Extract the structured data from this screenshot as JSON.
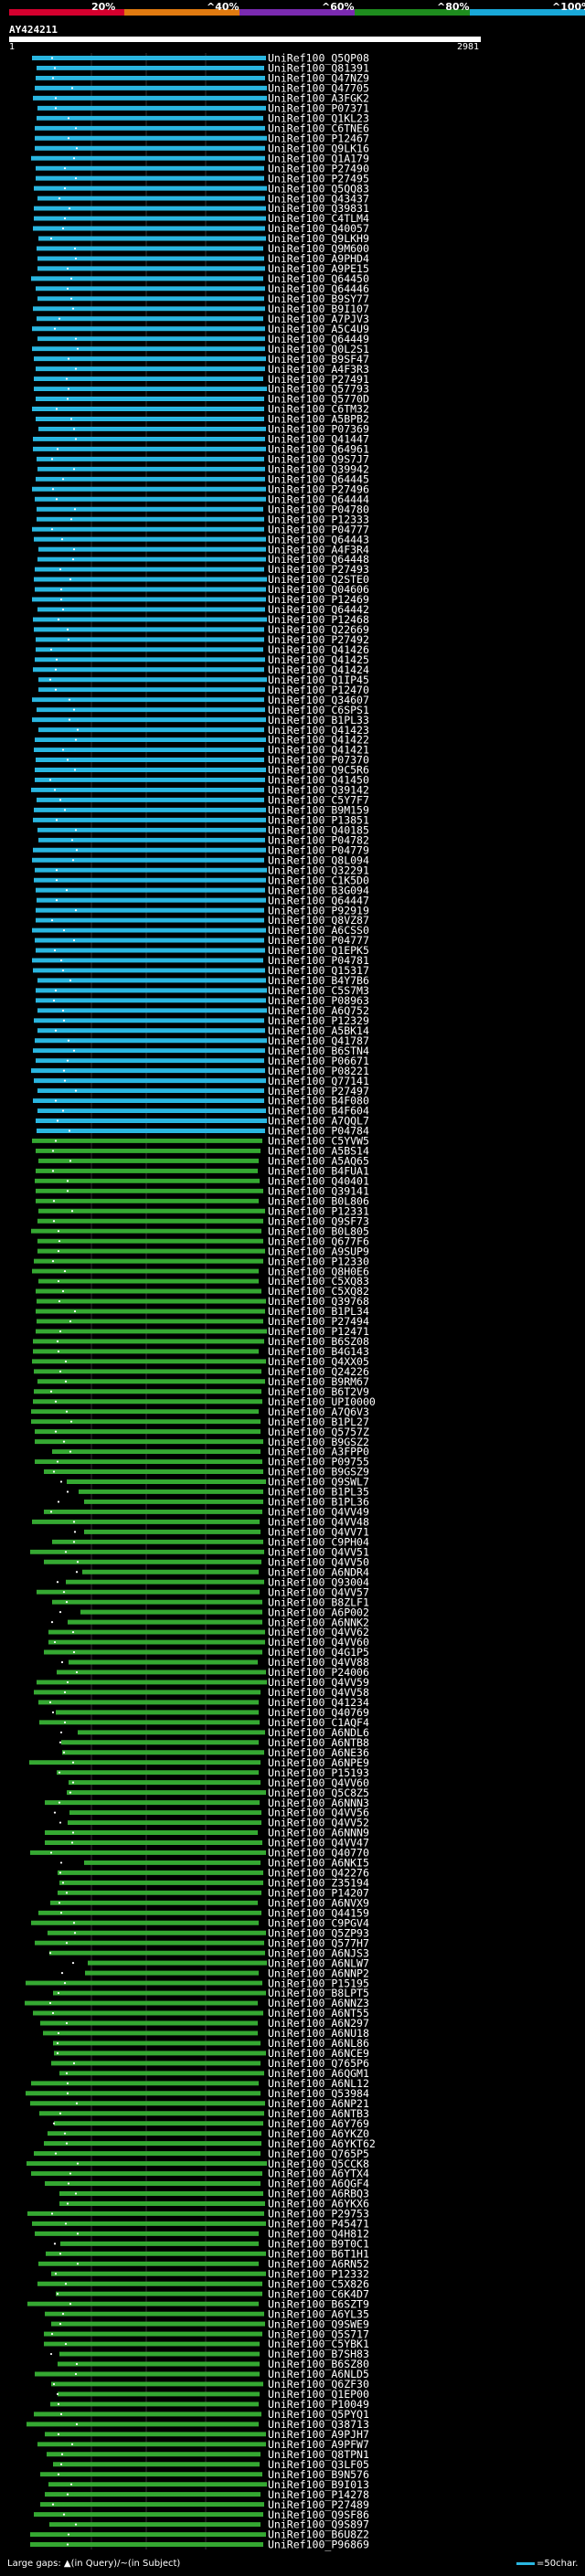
{
  "chart_data": {
    "type": "alignment_overview",
    "query": {
      "name": "AY424211",
      "start": 1,
      "end": 2981
    },
    "color_key": {
      "stops": [
        {
          "label": "20%",
          "color": "#d4002e"
        },
        {
          "label": "^40%",
          "color": "#e07a10"
        },
        {
          "label": "^60%",
          "color": "#7a2ab0"
        },
        {
          "label": "^80%",
          "color": "#1e8c1e"
        },
        {
          "label": "^100%",
          "color": "#19a8d8"
        }
      ]
    },
    "hits": [
      "UniRef100_Q5QP08",
      "UniRef100_Q81391",
      "UniRef100_Q47NZ9",
      "UniRef100_Q47705",
      "UniRef100_A3FGK2",
      "UniRef100_P07371",
      "UniRef100_Q1KL23",
      "UniRef100_C6TNE6",
      "UniRef100_P12467",
      "UniRef100_Q9LK16",
      "UniRef100_Q1A179",
      "UniRef100_P27490",
      "UniRef100_P27495",
      "UniRef100_Q5QQ83",
      "UniRef100_Q43437",
      "UniRef100_Q39831",
      "UniRef100_C4TLM4",
      "UniRef100_Q40057",
      "UniRef100_Q9LKH9",
      "UniRef100_Q9M600",
      "UniRef100_A9PHD4",
      "UniRef100_A9PE15",
      "UniRef100_Q64450",
      "UniRef100_Q64446",
      "UniRef100_B9SY77",
      "UniRef100_B9I107",
      "UniRef100_A7PJV3",
      "UniRef100_A5C4U9",
      "UniRef100_Q64449",
      "UniRef100_Q0L2S1",
      "UniRef100_B9SF47",
      "UniRef100_A4F3R3",
      "UniRef100_P27491",
      "UniRef100_Q57793",
      "UniRef100_Q5770D",
      "UniRef100_C6TM32",
      "UniRef100_A5BPB2",
      "UniRef100_P07369",
      "UniRef100_Q41447",
      "UniRef100_Q64961",
      "UniRef100_Q9S7J7",
      "UniRef100_Q39942",
      "UniRef100_Q64445",
      "UniRef100_P27496",
      "UniRef100_Q64444",
      "UniRef100_P04780",
      "UniRef100_P12333",
      "UniRef100_P04777",
      "UniRef100_Q64443",
      "UniRef100_A4F3R4",
      "UniRef100_Q64448",
      "UniRef100_P27493",
      "UniRef100_Q2STE0",
      "UniRef100_Q04606",
      "UniRef100_P12469",
      "UniRef100_Q64442",
      "UniRef100_P12468",
      "UniRef100_Q22669",
      "UniRef100_P27492",
      "UniRef100_Q41426",
      "UniRef100_Q41425",
      "UniRef100_Q41424",
      "UniRef100_Q1IP45",
      "UniRef100_P12470",
      "UniRef100_Q34607",
      "UniRef100_C6SPS1",
      "UniRef100_B1PL33",
      "UniRef100_Q41423",
      "UniRef100_Q41422",
      "UniRef100_Q41421",
      "UniRef100_P07370",
      "UniRef100_Q9C5R6",
      "UniRef100_Q41450",
      "UniRef100_Q39142",
      "UniRef100_C5Y7F7",
      "UniRef100_B9M159",
      "UniRef100_P13851",
      "UniRef100_Q40185",
      "UniRef100_P04782",
      "UniRef100_P04779",
      "UniRef100_Q8L094",
      "UniRef100_Q32291",
      "UniRef100_C1K5D0",
      "UniRef100_B3G094",
      "UniRef100_Q64447",
      "UniRef100_P92919",
      "UniRef100_Q8VZ87",
      "UniRef100_A6CSS0",
      "UniRef100_P04777",
      "UniRef100_Q1EPK5",
      "UniRef100_P04781",
      "UniRef100_Q15317",
      "UniRef100_B4Y7B6",
      "UniRef100_C5S7M3",
      "UniRef100_P08963",
      "UniRef100_A6Q752",
      "UniRef100_P12329",
      "UniRef100_A5BK14",
      "UniRef100_Q41787",
      "UniRef100_B6STN4",
      "UniRef100_P06671",
      "UniRef100_P08221",
      "UniRef100_Q77141",
      "UniRef100_P27497",
      "UniRef100_B4F080",
      "UniRef100_B4F604",
      "UniRef100_A7QQL7",
      "UniRef100_P04784",
      "UniRef100_C5YVW5",
      "UniRef100_A5BS14",
      "UniRef100_A5AQ65",
      "UniRef100_B4FUA1",
      "UniRef100_Q40401",
      "UniRef100_Q39141",
      "UniRef100_B0L806",
      "UniRef100_P12331",
      "UniRef100_Q9SF73",
      "UniRef100_B0L805",
      "UniRef100_Q677F6",
      "UniRef100_A9SUP9",
      "UniRef100_P12330",
      "UniRef100_Q8H0E6",
      "UniRef100_C5XQ83",
      "UniRef100_C5XQ82",
      "UniRef100_Q39768",
      "UniRef100_B1PL34",
      "UniRef100_P27494",
      "UniRef100_P12471",
      "UniRef100_B6SZ08",
      "UniRef100_B4G143",
      "UniRef100_Q4XX05",
      "UniRef100_Q24226",
      "UniRef100_B9RM67",
      "UniRef100_B6T2V9",
      "UniRef100_UPI0000",
      "UniRef100_A7Q6V3",
      "UniRef100_B1PL27",
      "UniRef100_Q5757Z",
      "UniRef100_B9GSZ2",
      "UniRef100_A3FPP0",
      "UniRef100_P09755",
      "UniRef100_B9GSZ9",
      "UniRef100_Q9SWL7",
      "UniRef100_B1PL35",
      "UniRef100_B1PL36",
      "UniRef100_Q4VV49",
      "UniRef100_Q4VV48",
      "UniRef100_Q4VV71",
      "UniRef100_C9PH04",
      "UniRef100_Q4VV51",
      "UniRef100_Q4VV50",
      "UniRef100_A6NDR4",
      "UniRef100_Q93004",
      "UniRef100_Q4VV57",
      "UniRef100_B8ZLF1",
      "UniRef100_A6P002",
      "UniRef100_A6NNK2",
      "UniRef100_Q4VV62",
      "UniRef100_Q4VV60",
      "UniRef100_Q4G1P5",
      "UniRef100_Q4VV88",
      "UniRef100_P24006",
      "UniRef100_Q4VV59",
      "UniRef100_Q4VV58",
      "UniRef100_Q41234",
      "UniRef100_Q40769",
      "UniRef100_C1AQF4",
      "UniRef100_A6NDL6",
      "UniRef100_A6NTB8",
      "UniRef100_A6NE36",
      "UniRef100_A6NPE9",
      "UniRef100_P15193",
      "UniRef100_Q4VV60",
      "UniRef100_Q5C8Z5",
      "UniRef100_A6NNN3",
      "UniRef100_Q4VV56",
      "UniRef100_Q4VV52",
      "UniRef100_A6NNN9",
      "UniRef100_Q4VV47",
      "UniRef100_Q40770",
      "UniRef100_A6NKI5",
      "UniRef100_Q42276",
      "UniRef100_Z35194",
      "UniRef100_P14207",
      "UniRef100_A6NVX9",
      "UniRef100_Q44159",
      "UniRef100_C9PGV4",
      "UniRef100_Q5ZP93",
      "UniRef100_Q577H7",
      "UniRef100_A6NJS3",
      "UniRef100_A6NLW7",
      "UniRef100_A6NNP2",
      "UniRef100_P15195",
      "UniRef100_B8LPT5",
      "UniRef100_A6NNZ3",
      "UniRef100_A6NT55",
      "UniRef100_A6N297",
      "UniRef100_A6NU18",
      "UniRef100_A6NL86",
      "UniRef100_A6NCE9",
      "UniRef100_Q765P6",
      "UniRef100_A6QGM1",
      "UniRef100_A6NL12",
      "UniRef100_Q53984",
      "UniRef100_A6NP21",
      "UniRef100_A6NTB3",
      "UniRef100_A6Y769",
      "UniRef100_A6YKZ0",
      "UniRef100_A6YKT62",
      "UniRef100_Q765P5",
      "UniRef100_Q5CCK8",
      "UniRef100_A6YTX4",
      "UniRef100_A6QGF4",
      "UniRef100_A6RBQ3",
      "UniRef100_A6YKX6",
      "UniRef100_P29753",
      "UniRef100_P45471",
      "UniRef100_Q4H812",
      "UniRef100_B9T0C1",
      "UniRef100_B6T1H1",
      "UniRef100_A6RN52",
      "UniRef100_P12332",
      "UniRef100_C5X826",
      "UniRef100_C6K4D7",
      "UniRef100_B6SZT9",
      "UniRef100_A6YL35",
      "UniRef100_Q9SWE9",
      "UniRef100_Q5S717",
      "UniRef100_C5YBK1",
      "UniRef100_B7SH83",
      "UniRef100_B6SZ80",
      "UniRef100_A6NLD5",
      "UniRef100_Q6ZF30",
      "UniRef100_Q1EP00",
      "UniRef100_P10049",
      "UniRef100_Q5PYQ1",
      "UniRef100_Q38713",
      "UniRef100_A9PJH7",
      "UniRef100_A9PFW7",
      "UniRef100_Q8TPN1",
      "UniRef100_Q3LF05",
      "UniRef100_B9N576",
      "UniRef100_B9I013",
      "UniRef100_P14278",
      "UniRef100_P27489",
      "UniRef100_Q9SF86",
      "UniRef100_Q9S897",
      "UniRef100_B6U8Z2",
      "UniRef100_P96869"
    ],
    "blue_count": 108,
    "x_range": [
      1,
      2981
    ]
  },
  "footer": {
    "left_text": "Large gaps: ▲(in Query)/~(in Subject)",
    "key_text": "=50char."
  }
}
